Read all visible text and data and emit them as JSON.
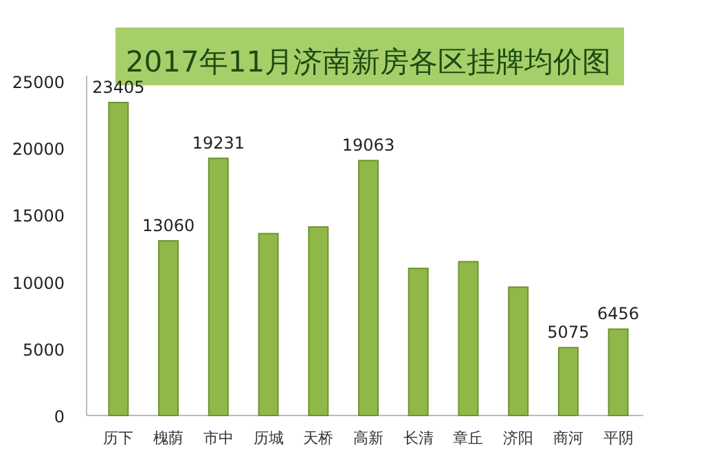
{
  "chart_data": {
    "type": "bar",
    "title": "2017年11月济南新房各区挂牌均价图",
    "categories": [
      "历下",
      "槐荫",
      "市中",
      "历城",
      "天桥",
      "高新",
      "长清",
      "章丘",
      "济阳",
      "商河",
      "平阴"
    ],
    "values": [
      23405,
      13060,
      19231,
      13600,
      14100,
      19063,
      11000,
      11500,
      9600,
      5075,
      6456
    ],
    "value_labels": [
      "23405",
      "13060",
      "19231",
      null,
      null,
      "19063",
      null,
      null,
      null,
      "5075",
      "6456"
    ],
    "color": "#8fb848",
    "ylim": [
      0,
      25000
    ],
    "yticks": [
      0,
      5000,
      10000,
      15000,
      20000,
      25000
    ],
    "grid": false
  }
}
